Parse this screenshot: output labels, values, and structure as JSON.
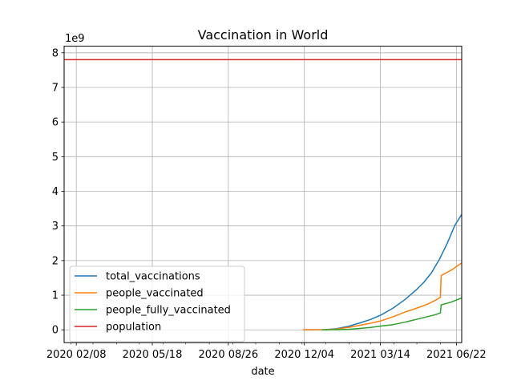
{
  "chart_data": {
    "type": "line",
    "title": "Vaccination in World",
    "xlabel": "date",
    "ylabel": "",
    "y_offset_text": "1e9",
    "y_scale_factor": 1000000000,
    "xlim": [
      "2020-01-23",
      "2021-06-29"
    ],
    "ylim": [
      -0.37,
      8.19
    ],
    "grid": true,
    "legend_position": "lower-left",
    "x_tick_dates": [
      "2020-02-08",
      "2020-05-18",
      "2020-08-26",
      "2020-12-04",
      "2021-03-14",
      "2021-06-22"
    ],
    "x_tick_labels": [
      "2020 02/08",
      "2020 05/18",
      "2020 08/26",
      "2020 12/04",
      "2021 03/14",
      "2021 06/22"
    ],
    "y_ticks": [
      0,
      1,
      2,
      3,
      4,
      5,
      6,
      7,
      8
    ],
    "y_tick_labels": [
      "0",
      "1",
      "2",
      "3",
      "4",
      "5",
      "6",
      "7",
      "8"
    ],
    "series": [
      {
        "name": "total_vaccinations",
        "color": "#1f77b4",
        "points": [
          [
            "2020-12-02",
            0.0
          ],
          [
            "2020-12-31",
            0.005
          ],
          [
            "2021-01-15",
            0.03
          ],
          [
            "2021-01-31",
            0.1
          ],
          [
            "2021-02-15",
            0.2
          ],
          [
            "2021-03-01",
            0.3
          ],
          [
            "2021-03-15",
            0.43
          ],
          [
            "2021-03-31",
            0.63
          ],
          [
            "2021-04-15",
            0.87
          ],
          [
            "2021-04-30",
            1.15
          ],
          [
            "2021-05-10",
            1.37
          ],
          [
            "2021-05-20",
            1.64
          ],
          [
            "2021-05-31",
            2.05
          ],
          [
            "2021-06-10",
            2.5
          ],
          [
            "2021-06-20",
            3.02
          ],
          [
            "2021-06-29",
            3.33
          ]
        ]
      },
      {
        "name": "people_vaccinated",
        "color": "#ff7f0e",
        "points": [
          [
            "2020-12-02",
            0.0
          ],
          [
            "2020-12-31",
            0.005
          ],
          [
            "2021-01-15",
            0.02
          ],
          [
            "2021-01-31",
            0.07
          ],
          [
            "2021-02-15",
            0.13
          ],
          [
            "2021-03-01",
            0.19
          ],
          [
            "2021-03-15",
            0.26
          ],
          [
            "2021-03-31",
            0.38
          ],
          [
            "2021-04-15",
            0.51
          ],
          [
            "2021-04-30",
            0.62
          ],
          [
            "2021-05-15",
            0.74
          ],
          [
            "2021-05-26",
            0.86
          ],
          [
            "2021-06-01",
            0.94
          ],
          [
            "2021-06-02",
            1.57
          ],
          [
            "2021-06-15",
            1.72
          ],
          [
            "2021-06-29",
            1.93
          ]
        ]
      },
      {
        "name": "people_fully_vaccinated",
        "color": "#2ca02c",
        "points": [
          [
            "2020-12-27",
            0.0
          ],
          [
            "2021-01-15",
            0.005
          ],
          [
            "2021-01-31",
            0.015
          ],
          [
            "2021-02-15",
            0.04
          ],
          [
            "2021-03-01",
            0.07
          ],
          [
            "2021-03-15",
            0.11
          ],
          [
            "2021-03-31",
            0.15
          ],
          [
            "2021-04-15",
            0.22
          ],
          [
            "2021-04-30",
            0.3
          ],
          [
            "2021-05-15",
            0.38
          ],
          [
            "2021-05-26",
            0.44
          ],
          [
            "2021-06-01",
            0.49
          ],
          [
            "2021-06-02",
            0.72
          ],
          [
            "2021-06-15",
            0.8
          ],
          [
            "2021-06-29",
            0.92
          ]
        ]
      },
      {
        "name": "population",
        "color": "#d62728",
        "points": [
          [
            "2020-01-23",
            7.8
          ],
          [
            "2021-06-29",
            7.8
          ]
        ]
      }
    ]
  }
}
